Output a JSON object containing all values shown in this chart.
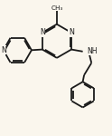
{
  "bg_color": "#faf6ed",
  "bond_color": "#1a1a1a",
  "bond_lw": 1.3,
  "fig_w": 1.24,
  "fig_h": 1.5,
  "dpi": 100,
  "xlim": [
    0.0,
    7.5
  ],
  "ylim": [
    -1.5,
    8.5
  ]
}
